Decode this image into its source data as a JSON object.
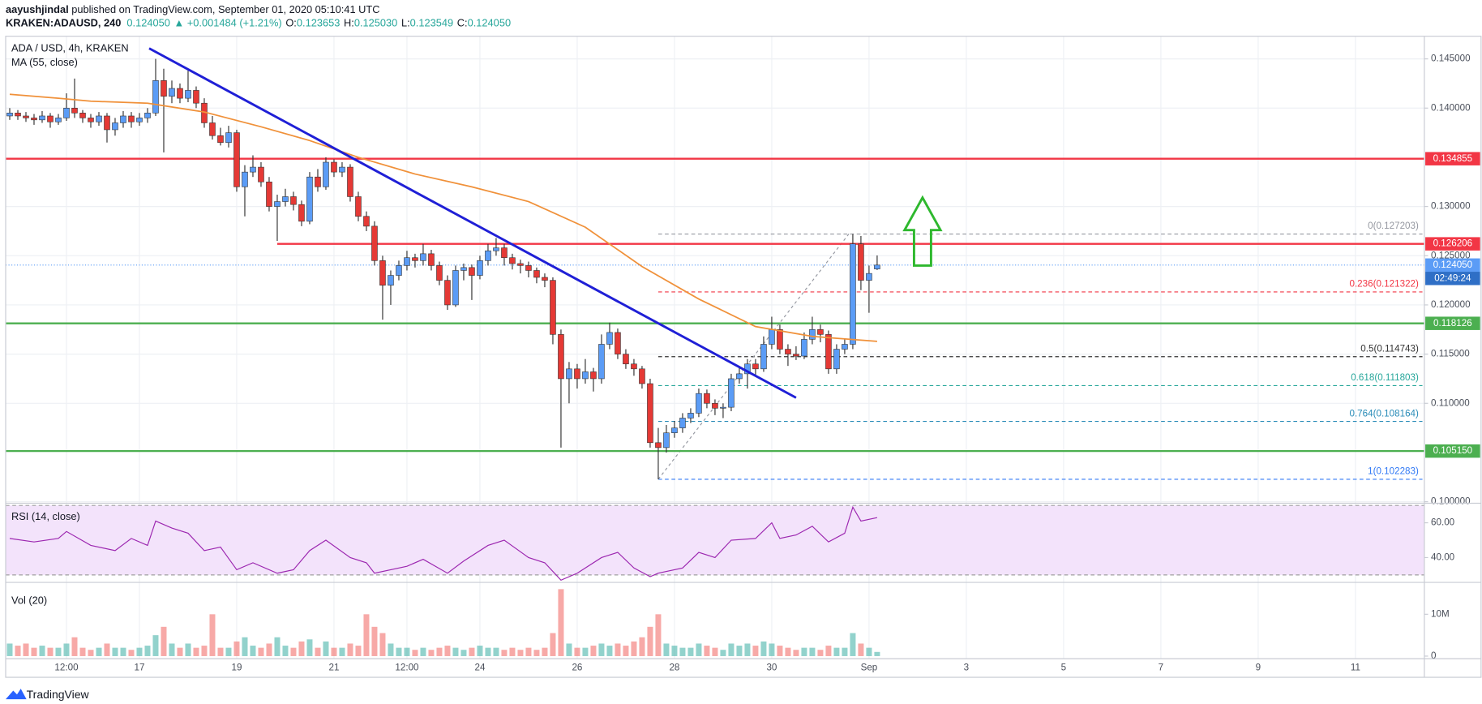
{
  "header": {
    "author": "aayushjindal",
    "published": " published on TradingView.com, September 01, 2020 05:10:41 UTC",
    "symbol": "KRAKEN:ADAUSD, 240",
    "last": "0.124050",
    "change": "▲ +0.001484 (+1.21%)",
    "ohlc": [
      {
        "key": "O:",
        "value": "0.123653"
      },
      {
        "key": "H:",
        "value": "0.125030"
      },
      {
        "key": "L:",
        "value": "0.123549"
      },
      {
        "key": "C:",
        "value": "0.124050"
      }
    ]
  },
  "chart_data": {
    "type": "candlestick",
    "title": "ADA / USD, 4h, KRAKEN",
    "up_color": "#5b9cf6",
    "down_color": "#e53935",
    "grid": true,
    "xlim": [
      -0.5,
      174.5
    ],
    "ylim": [
      0.0999,
      0.1473
    ],
    "xticks": [
      {
        "value": 7,
        "label": "12:00"
      },
      17,
      19,
      21,
      {
        "value": 49,
        "label": "12:00"
      },
      24,
      26,
      28,
      30,
      {
        "value": 106,
        "label": "Sep"
      },
      3,
      5,
      7,
      9,
      11
    ],
    "xtick_pos": [
      7,
      16,
      28,
      40,
      49,
      58,
      70,
      82,
      94,
      106,
      118,
      130,
      142,
      154,
      166
    ],
    "yticks": [
      {
        "value": 0.145,
        "label": "0.145000"
      },
      {
        "value": 0.14,
        "label": "0.140000"
      },
      {
        "value": 0.13,
        "label": "0.130000"
      },
      {
        "value": 0.125,
        "label": "0.125000"
      },
      {
        "value": 0.12,
        "label": "0.120000"
      },
      {
        "value": 0.115,
        "label": "0.115000"
      },
      {
        "value": 0.11,
        "label": "0.110000"
      },
      {
        "value": 0.1,
        "label": "0.100000"
      }
    ],
    "candles": [
      [
        0.1392,
        0.14,
        0.1388,
        0.1395
      ],
      [
        0.1395,
        0.1398,
        0.1388,
        0.1392
      ],
      [
        0.1392,
        0.1396,
        0.1386,
        0.139
      ],
      [
        0.139,
        0.1394,
        0.1383,
        0.1388
      ],
      [
        0.1388,
        0.1397,
        0.1385,
        0.1392
      ],
      [
        0.1392,
        0.1395,
        0.138,
        0.1386
      ],
      [
        0.1386,
        0.1394,
        0.1383,
        0.139
      ],
      [
        0.139,
        0.1415,
        0.1387,
        0.14
      ],
      [
        0.14,
        0.143,
        0.139,
        0.1395
      ],
      [
        0.1395,
        0.1398,
        0.1385,
        0.139
      ],
      [
        0.139,
        0.1394,
        0.138,
        0.1386
      ],
      [
        0.1386,
        0.1396,
        0.1382,
        0.1392
      ],
      [
        0.1392,
        0.1395,
        0.1365,
        0.1378
      ],
      [
        0.1378,
        0.139,
        0.1372,
        0.1385
      ],
      [
        0.1385,
        0.1397,
        0.138,
        0.1392
      ],
      [
        0.1392,
        0.1396,
        0.138,
        0.1386
      ],
      [
        0.1386,
        0.1395,
        0.1382,
        0.139
      ],
      [
        0.139,
        0.14,
        0.1385,
        0.1395
      ],
      [
        0.1395,
        0.145,
        0.1392,
        0.1428
      ],
      [
        0.1428,
        0.144,
        0.1355,
        0.1412
      ],
      [
        0.1412,
        0.1428,
        0.1405,
        0.142
      ],
      [
        0.142,
        0.1425,
        0.1405,
        0.141
      ],
      [
        0.141,
        0.1438,
        0.1406,
        0.1418
      ],
      [
        0.1418,
        0.1422,
        0.14,
        0.1405
      ],
      [
        0.1405,
        0.141,
        0.138,
        0.1385
      ],
      [
        0.1385,
        0.1392,
        0.1368,
        0.1372
      ],
      [
        0.1372,
        0.138,
        0.1362,
        0.1365
      ],
      [
        0.1365,
        0.1382,
        0.136,
        0.1375
      ],
      [
        0.1375,
        0.1378,
        0.1315,
        0.132
      ],
      [
        0.132,
        0.1342,
        0.129,
        0.1335
      ],
      [
        0.1335,
        0.1352,
        0.133,
        0.134
      ],
      [
        0.134,
        0.1345,
        0.132,
        0.1325
      ],
      [
        0.1325,
        0.133,
        0.1295,
        0.13
      ],
      [
        0.13,
        0.1312,
        0.1265,
        0.1305
      ],
      [
        0.1305,
        0.1318,
        0.13,
        0.131
      ],
      [
        0.131,
        0.1315,
        0.1296,
        0.1302
      ],
      [
        0.1302,
        0.1306,
        0.128,
        0.1285
      ],
      [
        0.1285,
        0.1335,
        0.1282,
        0.133
      ],
      [
        0.133,
        0.1338,
        0.1315,
        0.132
      ],
      [
        0.132,
        0.135,
        0.1317,
        0.1345
      ],
      [
        0.1345,
        0.1348,
        0.133,
        0.1335
      ],
      [
        0.1335,
        0.1345,
        0.133,
        0.134
      ],
      [
        0.134,
        0.1343,
        0.1305,
        0.131
      ],
      [
        0.131,
        0.1315,
        0.1285,
        0.129
      ],
      [
        0.129,
        0.1295,
        0.1275,
        0.128
      ],
      [
        0.128,
        0.1285,
        0.124,
        0.1245
      ],
      [
        0.1245,
        0.125,
        0.1185,
        0.122
      ],
      [
        0.122,
        0.1235,
        0.12,
        0.123
      ],
      [
        0.123,
        0.1245,
        0.1225,
        0.124
      ],
      [
        0.124,
        0.1255,
        0.1235,
        0.1248
      ],
      [
        0.1248,
        0.1252,
        0.1238,
        0.1245
      ],
      [
        0.1245,
        0.1262,
        0.124,
        0.1252
      ],
      [
        0.1252,
        0.1256,
        0.1235,
        0.124
      ],
      [
        0.124,
        0.1244,
        0.122,
        0.1225
      ],
      [
        0.1225,
        0.123,
        0.1195,
        0.12
      ],
      [
        0.12,
        0.124,
        0.1198,
        0.1235
      ],
      [
        0.1235,
        0.1242,
        0.1225,
        0.1238
      ],
      [
        0.1238,
        0.1241,
        0.1205,
        0.123
      ],
      [
        0.123,
        0.125,
        0.1226,
        0.1245
      ],
      [
        0.1245,
        0.1262,
        0.124,
        0.1255
      ],
      [
        0.1255,
        0.1268,
        0.125,
        0.1258
      ],
      [
        0.1258,
        0.1262,
        0.124,
        0.1248
      ],
      [
        0.1248,
        0.1252,
        0.1236,
        0.1242
      ],
      [
        0.1242,
        0.1246,
        0.1232,
        0.124
      ],
      [
        0.124,
        0.1244,
        0.1228,
        0.1235
      ],
      [
        0.1235,
        0.1238,
        0.1222,
        0.1228
      ],
      [
        0.1228,
        0.1232,
        0.1218,
        0.1225
      ],
      [
        0.1225,
        0.1228,
        0.116,
        0.117
      ],
      [
        0.117,
        0.1175,
        0.1055,
        0.1125
      ],
      [
        0.1125,
        0.1142,
        0.11,
        0.1135
      ],
      [
        0.1135,
        0.114,
        0.1115,
        0.1125
      ],
      [
        0.1125,
        0.1145,
        0.112,
        0.1132
      ],
      [
        0.1132,
        0.1136,
        0.1112,
        0.1125
      ],
      [
        0.1125,
        0.117,
        0.112,
        0.116
      ],
      [
        0.116,
        0.1182,
        0.1155,
        0.1172
      ],
      [
        0.1172,
        0.1176,
        0.1145,
        0.115
      ],
      [
        0.115,
        0.1155,
        0.1135,
        0.114
      ],
      [
        0.114,
        0.1145,
        0.1128,
        0.1135
      ],
      [
        0.1135,
        0.1138,
        0.1115,
        0.112
      ],
      [
        0.112,
        0.1125,
        0.1055,
        0.106
      ],
      [
        0.106,
        0.1075,
        0.102283,
        0.1055
      ],
      [
        0.1055,
        0.1078,
        0.105,
        0.107
      ],
      [
        0.107,
        0.1082,
        0.1065,
        0.1075
      ],
      [
        0.1075,
        0.109,
        0.107,
        0.1085
      ],
      [
        0.1085,
        0.1095,
        0.108,
        0.109
      ],
      [
        0.109,
        0.1115,
        0.1086,
        0.111
      ],
      [
        0.111,
        0.1114,
        0.1095,
        0.11
      ],
      [
        0.11,
        0.1104,
        0.1088,
        0.1095
      ],
      [
        0.1095,
        0.11,
        0.1085,
        0.1096
      ],
      [
        0.1096,
        0.113,
        0.1092,
        0.1125
      ],
      [
        0.1125,
        0.1138,
        0.112,
        0.113
      ],
      [
        0.113,
        0.1145,
        0.1115,
        0.114
      ],
      [
        0.114,
        0.1145,
        0.1128,
        0.1135
      ],
      [
        0.1135,
        0.1168,
        0.1132,
        0.116
      ],
      [
        0.116,
        0.1188,
        0.1155,
        0.1175
      ],
      [
        0.1175,
        0.118,
        0.115,
        0.1155
      ],
      [
        0.1155,
        0.116,
        0.1138,
        0.115
      ],
      [
        0.115,
        0.1158,
        0.1144,
        0.1148
      ],
      [
        0.1148,
        0.1172,
        0.1145,
        0.1165
      ],
      [
        0.1165,
        0.1188,
        0.116,
        0.1175
      ],
      [
        0.1175,
        0.118,
        0.1162,
        0.117
      ],
      [
        0.117,
        0.1174,
        0.113,
        0.1135
      ],
      [
        0.1135,
        0.116,
        0.113,
        0.1155
      ],
      [
        0.1155,
        0.1165,
        0.115,
        0.116
      ],
      [
        0.116,
        0.127203,
        0.1155,
        0.1262
      ],
      [
        0.1262,
        0.127,
        0.1215,
        0.1225
      ],
      [
        0.1225,
        0.124,
        0.1192,
        0.1232
      ],
      [
        0.123653,
        0.12503,
        0.123549,
        0.12405
      ]
    ],
    "ma": {
      "name": "MA (55, close)",
      "color": "#f0913a",
      "x": [
        0,
        6,
        10,
        17,
        24,
        31,
        37,
        43,
        50,
        57,
        64,
        71,
        78,
        85,
        92,
        99,
        107
      ],
      "values": [
        0.1414,
        0.141,
        0.1407,
        0.1405,
        0.1396,
        0.1381,
        0.1367,
        0.135,
        0.1333,
        0.132,
        0.1305,
        0.1279,
        0.1239,
        0.1206,
        0.1178,
        0.1168,
        0.1163
      ]
    },
    "trendline": {
      "color": "#1f1fd6",
      "x": [
        17.2,
        97
      ],
      "values": [
        0.14607,
        0.11057
      ]
    },
    "levels": [
      {
        "value": 0.134855,
        "label": "0.134855",
        "color": "#f23645",
        "from": -0.5
      },
      {
        "value": 0.126206,
        "label": "0.126206",
        "color": "#f23645",
        "from": 33
      },
      {
        "value": 0.118126,
        "label": "0.118126",
        "color": "#4caf50",
        "from": -0.5
      },
      {
        "value": 0.10515,
        "label": "0.105150",
        "color": "#4caf50",
        "from": -0.5
      }
    ],
    "last_price": {
      "value": 0.12405,
      "label": "0.124050",
      "countdown": "02:49:24",
      "color": "#5b9cf6"
    },
    "fib": {
      "from": 80,
      "diagonal": {
        "x": [
          80,
          103.5
        ],
        "values": [
          0.102283,
          0.127203
        ]
      },
      "levels": [
        {
          "value": 0.127203,
          "label": "0(0.127203)",
          "color": "#9598a1"
        },
        {
          "value": 0.121322,
          "label": "0.236(0.121322)",
          "color": "#f23645"
        },
        {
          "value": 0.114743,
          "label": "0.5(0.114743)",
          "color": "#333333"
        },
        {
          "value": 0.111803,
          "label": "0.618(0.111803)",
          "color": "#26a69a"
        },
        {
          "value": 0.108164,
          "label": "0.764(0.108164)",
          "color": "#2a8cb8"
        },
        {
          "value": 0.102283,
          "label": "1(0.102283)",
          "color": "#3179f5"
        }
      ]
    },
    "arrow": {
      "x": 112.6,
      "from": 0.124,
      "to": 0.1309,
      "color": "#2eb82e"
    },
    "rsi": {
      "title": "RSI (14, close)",
      "color": "#9c27b0",
      "band": [
        30,
        70
      ],
      "ylim": [
        26,
        71
      ],
      "yticks": [
        {
          "value": 60,
          "label": "60.00"
        },
        {
          "value": 40,
          "label": "40.00"
        }
      ],
      "x": [
        0,
        3,
        6,
        7,
        10,
        13,
        15,
        17,
        18,
        20,
        22,
        24,
        26,
        28,
        30,
        33,
        35,
        37,
        39,
        42,
        44,
        45,
        49,
        51,
        54,
        56,
        59,
        61,
        64,
        66,
        68,
        70,
        73,
        75,
        77,
        79,
        80,
        83,
        85,
        87,
        89,
        92,
        94,
        95,
        97,
        99,
        101,
        103,
        104,
        105,
        107
      ],
      "values": [
        51,
        49,
        51,
        55,
        47,
        44,
        51,
        47,
        61,
        57,
        54,
        44,
        46,
        33,
        37,
        31,
        33,
        44,
        50,
        40,
        37,
        31,
        35,
        39,
        31,
        38,
        47,
        50,
        40,
        37,
        27,
        31,
        40,
        43,
        34,
        29,
        31,
        34,
        43,
        40,
        50,
        51,
        60,
        51,
        53,
        58,
        49,
        54,
        69,
        61,
        63
      ]
    },
    "volume": {
      "title": "Vol (20)",
      "up_color": "#26a69a",
      "down_color": "#ef5350",
      "ylim": [
        -0.5,
        17.5
      ],
      "yticks": [
        {
          "value": 10,
          "label": "10M"
        },
        0
      ],
      "values": [
        3,
        2.5,
        3,
        2,
        2.5,
        2,
        2,
        3,
        4.5,
        2,
        1.5,
        2,
        3,
        2,
        2,
        1.5,
        2,
        2.5,
        5,
        7,
        3,
        2,
        3,
        2,
        2.5,
        10,
        2,
        2,
        3.5,
        4.5,
        2.5,
        2,
        3,
        4.5,
        2.5,
        2,
        3.5,
        4,
        2,
        3.5,
        2,
        2,
        3,
        2.5,
        10,
        7,
        5.5,
        3,
        2,
        2,
        1.5,
        2,
        1.5,
        2,
        2.5,
        2,
        1.5,
        2,
        2.5,
        2,
        2,
        1.5,
        2,
        1.5,
        2,
        1.5,
        2,
        5.5,
        16,
        3,
        2,
        2,
        2.5,
        3,
        2.5,
        3,
        2.5,
        3.5,
        4.5,
        7,
        10,
        3,
        2.5,
        2,
        2,
        3,
        2.5,
        2,
        1.5,
        3,
        2.5,
        3,
        2.5,
        3.5,
        3,
        2.5,
        2,
        1.5,
        2,
        2,
        1.5,
        2.5,
        2,
        2,
        5.5,
        3,
        2,
        1
      ]
    }
  },
  "footer": {
    "brand": "TradingView"
  }
}
